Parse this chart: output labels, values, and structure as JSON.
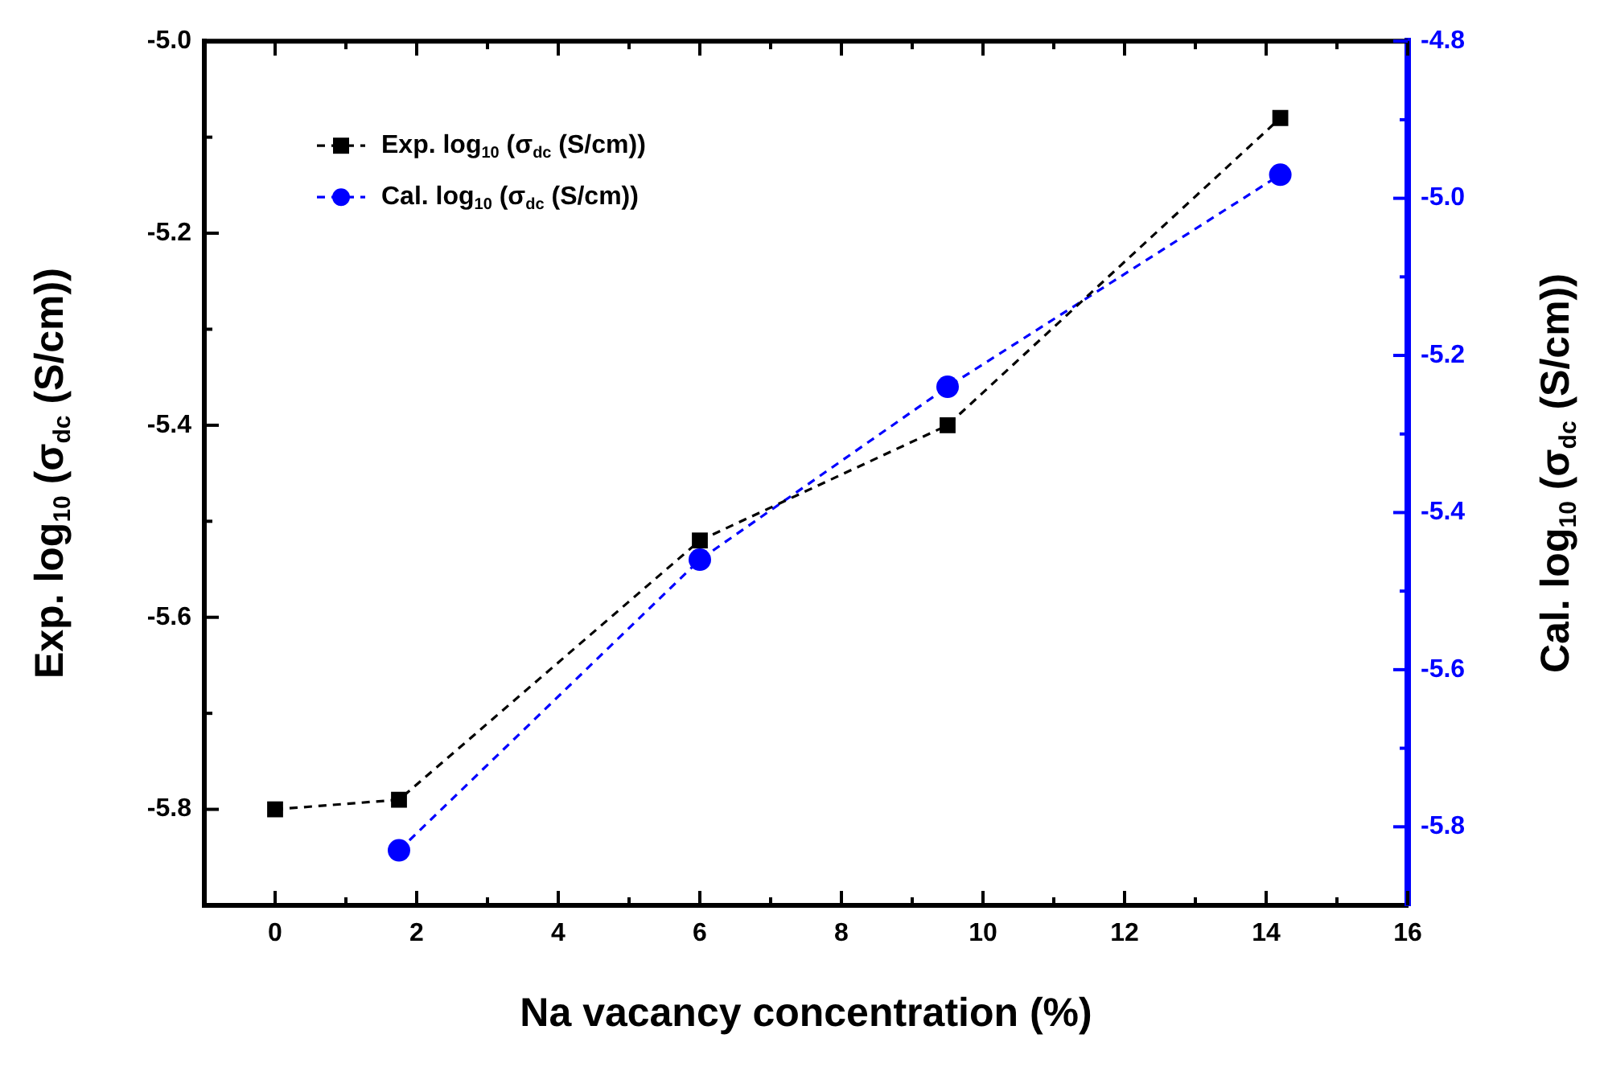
{
  "chart_data": {
    "type": "line",
    "xlabel": "Na vacancy concentration (%)",
    "ylabel": "Exp. log$_{10}$ (σ$_{dc}$ (S/cm))",
    "y2label": "Cal. log$_{10}$ (σ$_{dc}$ (S/cm))",
    "xlim": [
      -1,
      16
    ],
    "xticks": [
      0,
      {
        "value": 1,
        "label": null
      },
      2,
      {
        "value": 3,
        "label": null
      },
      4,
      {
        "value": 5,
        "label": null
      },
      6,
      {
        "value": 7,
        "label": null
      },
      8,
      {
        "value": 9,
        "label": null
      },
      10,
      {
        "value": 11,
        "label": null
      },
      12,
      {
        "value": 13,
        "label": null
      },
      14,
      {
        "value": 15,
        "label": null
      },
      16
    ],
    "ylim": [
      -5.9,
      -5.0
    ],
    "yticks": [
      {
        "value": -5.8,
        "label": "-5.8"
      },
      {
        "value": -5.7,
        "label": null
      },
      {
        "value": -5.6,
        "label": "-5.6"
      },
      {
        "value": -5.5,
        "label": null
      },
      {
        "value": -5.4,
        "label": "-5.4"
      },
      {
        "value": -5.3,
        "label": null
      },
      {
        "value": -5.2,
        "label": "-5.2"
      },
      {
        "value": -5.1,
        "label": null
      },
      {
        "value": -5.0,
        "label": "-5.0"
      }
    ],
    "y2lim": [
      -5.9,
      -4.8
    ],
    "y2ticks": [
      {
        "value": -5.8,
        "label": "-5.8"
      },
      {
        "value": -5.7,
        "label": null
      },
      {
        "value": -5.6,
        "label": "-5.6"
      },
      {
        "value": -5.5,
        "label": null
      },
      {
        "value": -5.4,
        "label": "-5.4"
      },
      {
        "value": -5.3,
        "label": null
      },
      {
        "value": -5.2,
        "label": "-5.2"
      },
      {
        "value": -5.1,
        "label": null
      },
      {
        "value": -5.0,
        "label": "-5.0"
      },
      {
        "value": -4.9,
        "label": null
      },
      {
        "value": -4.8,
        "label": "-4.8"
      }
    ],
    "legend": "top left",
    "line_style": "dashed",
    "series": [
      {
        "name": "Exp. log$_{10}$ (σ$_{dc}$ (S/cm))",
        "color": "#000000",
        "marker": "square",
        "x": [
          0,
          1.75,
          6,
          9.5,
          14.2
        ],
        "values": [
          -5.8,
          -5.79,
          -5.52,
          -5.4,
          -5.08
        ]
      },
      {
        "name": "Cal. log$_{10}$ (σ$_{dc}$ (S/cm))",
        "color": "#0000ff",
        "marker": "circle",
        "axis": "y2",
        "x": [
          1.75,
          6,
          9.5,
          14.2
        ],
        "values": [
          -5.83,
          -5.46,
          -5.24,
          -4.97
        ]
      }
    ]
  }
}
